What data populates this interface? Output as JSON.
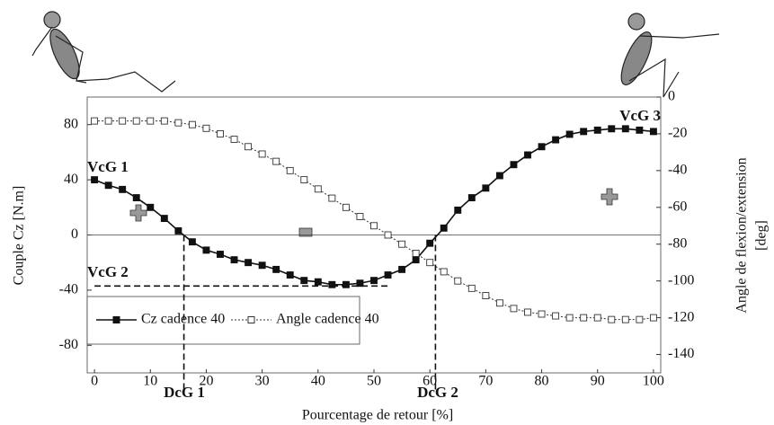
{
  "chart_data": {
    "type": "line",
    "xlabel": "Pourcentage de retour [%]",
    "ylabel": "Couple Cz [N.m]",
    "y2label": [
      "Angle de flexion/extension",
      "[deg]"
    ],
    "x": [
      0,
      2.5,
      5,
      7.5,
      10,
      12.5,
      15,
      17.5,
      20,
      22.5,
      25,
      27.5,
      30,
      32.5,
      35,
      37.5,
      40,
      42.5,
      45,
      47.5,
      50,
      52.5,
      55,
      57.5,
      60,
      62.5,
      65,
      67.5,
      70,
      72.5,
      75,
      77.5,
      80,
      82.5,
      85,
      87.5,
      90,
      92.5,
      95,
      97.5,
      100
    ],
    "series": [
      {
        "name": "Cz cadence 40",
        "color": "#111111",
        "style": "solid",
        "axis": "y",
        "values": [
          40,
          36,
          33,
          27,
          20,
          12,
          3,
          -5,
          -11,
          -14,
          -18,
          -20,
          -22,
          -25,
          -29,
          -33,
          -34,
          -36,
          -36,
          -35,
          -33,
          -29,
          -25,
          -18,
          -6,
          5,
          18,
          27,
          34,
          43,
          51,
          58,
          64,
          69,
          73,
          75,
          76,
          77,
          77,
          76,
          75
        ]
      },
      {
        "name": "Angle cadence 40",
        "color": "#333333",
        "style": "dotted",
        "axis": "y2",
        "values": [
          -13,
          -13,
          -13,
          -13,
          -13,
          -13,
          -14,
          -15,
          -17,
          -20,
          -23,
          -27,
          -31,
          -35,
          -40,
          -45,
          -50,
          -55,
          -60,
          -65,
          -70,
          -75,
          -80,
          -85,
          -90,
          -95,
          -100,
          -104,
          -108,
          -112,
          -115,
          -117,
          -118,
          -119,
          -120,
          -120,
          -120,
          -121,
          -121,
          -121,
          -120
        ]
      }
    ],
    "xlim": [
      -1.3,
      101.3
    ],
    "xticks": [
      0,
      10,
      20,
      30,
      40,
      50,
      60,
      70,
      80,
      90,
      100
    ],
    "ylim": [
      -100,
      100
    ],
    "yticks": [
      -80,
      -40,
      0,
      40,
      80
    ],
    "y2lim": [
      -150,
      0
    ],
    "y2ticks": [
      -140,
      -120,
      -100,
      -80,
      -60,
      -40,
      -20,
      0
    ],
    "reference_lines": [
      {
        "x": 16
      },
      {
        "x": 61
      },
      {
        "y": -37,
        "xrange": [
          0,
          53
        ]
      }
    ],
    "annotations": [
      "VcG 1",
      "VcG 2",
      "VcG 3",
      "DcG 1",
      "DcG 2"
    ],
    "legend": "lower left"
  }
}
